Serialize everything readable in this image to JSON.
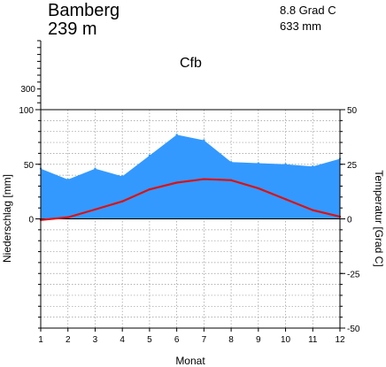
{
  "header": {
    "station": "Bamberg",
    "elevation": "239 m",
    "mean_temp": "8.8 Grad C",
    "annual_precip": "633 mm",
    "climate_class": "Cfb"
  },
  "chart_data": {
    "type": "area",
    "xlabel": "Monat",
    "ylabel_left": "Niederschlag [mm]",
    "ylabel_right": "Temperatur [Grad C]",
    "x": [
      1,
      2,
      3,
      4,
      5,
      6,
      7,
      8,
      9,
      10,
      11,
      12
    ],
    "x_tick_labels": [
      "1",
      "2",
      "3",
      "4",
      "5",
      "6",
      "7",
      "8",
      "9",
      "10",
      "11",
      "12"
    ],
    "left_axis": {
      "range": [
        -100,
        100
      ],
      "upper_ticks": [
        "300"
      ],
      "ticks": [
        {
          "value": 100,
          "label": "100"
        },
        {
          "value": 50,
          "label": "50"
        },
        {
          "value": 0,
          "label": "0"
        }
      ]
    },
    "right_axis": {
      "range": [
        -50,
        50
      ],
      "ticks": [
        {
          "value": 50,
          "label": "50"
        },
        {
          "value": 25,
          "label": "25"
        },
        {
          "value": 0,
          "label": "0"
        },
        {
          "value": -25,
          "label": "-25"
        },
        {
          "value": -50,
          "label": "-50"
        }
      ]
    },
    "series": [
      {
        "axis": "left",
        "kind": "area",
        "color": "#3399ff",
        "values": [
          46,
          36,
          46,
          39,
          58,
          77,
          72,
          52,
          51,
          50,
          48,
          55
        ]
      },
      {
        "axis": "right",
        "kind": "line",
        "color": "#dd1111",
        "values": [
          -0.5,
          0.7,
          4.3,
          8.0,
          13.5,
          16.6,
          18.2,
          17.7,
          14.0,
          9.0,
          4.0,
          1.0
        ]
      }
    ],
    "grid": true
  }
}
